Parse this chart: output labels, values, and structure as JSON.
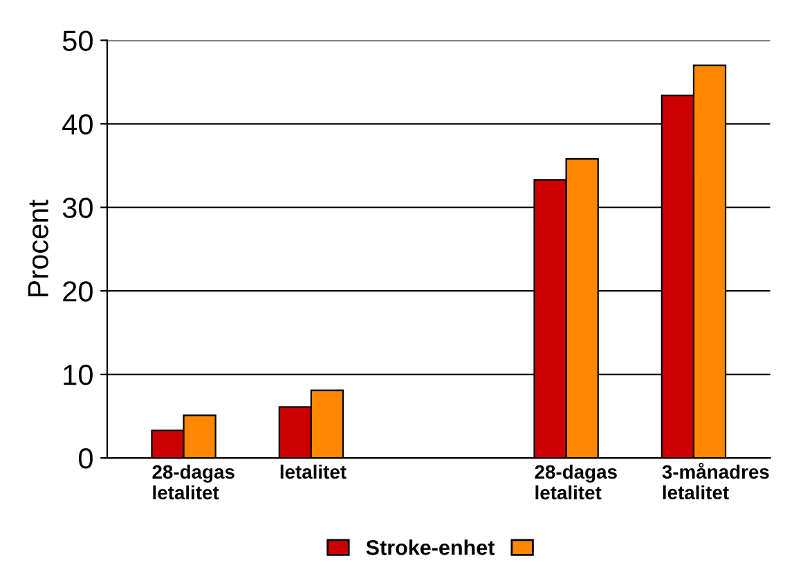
{
  "chart_data": {
    "type": "bar",
    "ylabel": "Procent",
    "categories": [
      "28-dagas\nletalitet",
      "letalitet",
      null,
      "28-dagas\nletalitet",
      "3-månadres\nletalitet"
    ],
    "series": [
      {
        "name": "Stroke-enhet",
        "color": "#cc0000",
        "values": [
          3.3,
          6.1,
          null,
          33.3,
          43.4
        ]
      },
      {
        "color": "#ff8800",
        "values": [
          5.1,
          8.1,
          null,
          35.8,
          47.0
        ]
      }
    ],
    "ylim": [
      0,
      50
    ],
    "yticks": [
      0,
      10,
      20,
      30,
      40,
      50
    ],
    "grid": "y",
    "legend": "bottom"
  }
}
